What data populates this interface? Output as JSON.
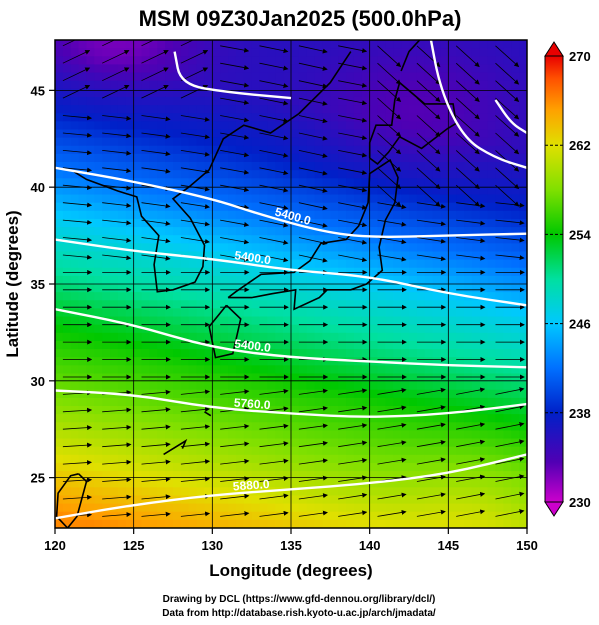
{
  "title": "MSM 09Z30Jan2025 (500.0hPa)",
  "xlabel": "Longitude (degrees)",
  "ylabel": "Latitude  (degrees)",
  "credits": [
    "Drawing by DCL (https://www.gfd-dennou.org/library/dcl/)",
    "Data from http://database.rish.kyoto-u.ac.jp/arch/jmadata/"
  ],
  "chart_data": {
    "type": "heatmap",
    "title": "MSM 09Z30Jan2025 (500.0hPa)",
    "xlabel": "Longitude (degrees)",
    "ylabel": "Latitude  (degrees)",
    "xlim": [
      120,
      150
    ],
    "ylim": [
      22.4,
      47.6
    ],
    "x_ticks": [
      "120",
      "125",
      "130",
      "135",
      "140",
      "145",
      "150"
    ],
    "y_ticks": [
      "25",
      "30",
      "35",
      "40",
      "45"
    ],
    "colorbar": {
      "min": 230,
      "max": 270,
      "tick_labels": [
        "270",
        "262",
        "254",
        "246",
        "238",
        "230"
      ],
      "colors": [
        "#cc00cc",
        "#5000b4",
        "#0020c8",
        "#0070ff",
        "#00c8ff",
        "#00e0a0",
        "#00c800",
        "#80e000",
        "#e0e000",
        "#ffa000",
        "#ff5000",
        "#e80000"
      ]
    },
    "contours": [
      {
        "label": "5400.0",
        "points": [
          [
            120,
            41
          ],
          [
            125,
            40.3
          ],
          [
            130,
            39.4
          ],
          [
            133,
            38.6
          ],
          [
            137,
            37.7
          ],
          [
            140,
            37.4
          ],
          [
            145,
            37.5
          ],
          [
            150,
            37.6
          ]
        ]
      },
      {
        "label": "5400.0",
        "points": [
          [
            120,
            37.3
          ],
          [
            125,
            36.7
          ],
          [
            130,
            36.3
          ],
          [
            135,
            35.7
          ],
          [
            140,
            35.4
          ],
          [
            145,
            34.5
          ],
          [
            150,
            33.9
          ]
        ]
      },
      {
        "label": "5400.0",
        "points": [
          [
            120,
            33.7
          ],
          [
            125,
            32.9
          ],
          [
            130,
            31.7
          ],
          [
            135,
            31.2
          ],
          [
            140,
            31.0
          ],
          [
            145,
            30.8
          ],
          [
            150,
            30.7
          ]
        ]
      },
      {
        "label": "5760.0",
        "points": [
          [
            120,
            29.5
          ],
          [
            125,
            29.3
          ],
          [
            130,
            28.6
          ],
          [
            135,
            28.3
          ],
          [
            140,
            28.1
          ],
          [
            145,
            28.3
          ],
          [
            150,
            28.8
          ]
        ]
      },
      {
        "label": "5880.0",
        "points": [
          [
            120,
            22.9
          ],
          [
            125,
            23.6
          ],
          [
            130,
            24.1
          ],
          [
            135,
            24.4
          ],
          [
            140,
            24.7
          ],
          [
            145,
            25.2
          ],
          [
            150,
            26.2
          ]
        ]
      },
      {
        "label": "",
        "points": [
          [
            127.6,
            47.0
          ],
          [
            128,
            45.3
          ],
          [
            131,
            44.9
          ],
          [
            135,
            44.6
          ]
        ]
      },
      {
        "label": "",
        "points": [
          [
            143.8,
            48.0
          ],
          [
            144.5,
            45
          ],
          [
            146,
            42.5
          ],
          [
            148,
            41.5
          ],
          [
            150,
            41.0
          ]
        ]
      },
      {
        "label": "",
        "points": [
          [
            148,
            44.5
          ],
          [
            149,
            43.3
          ],
          [
            150,
            42.8
          ]
        ]
      }
    ],
    "field_description_values": {
      "lat_profile": [
        [
          47,
          236
        ],
        [
          44,
          238
        ],
        [
          41,
          242
        ],
        [
          38,
          247
        ],
        [
          35,
          251
        ],
        [
          32,
          255
        ],
        [
          29,
          258
        ],
        [
          26,
          262
        ],
        [
          23,
          266
        ]
      ]
    }
  }
}
